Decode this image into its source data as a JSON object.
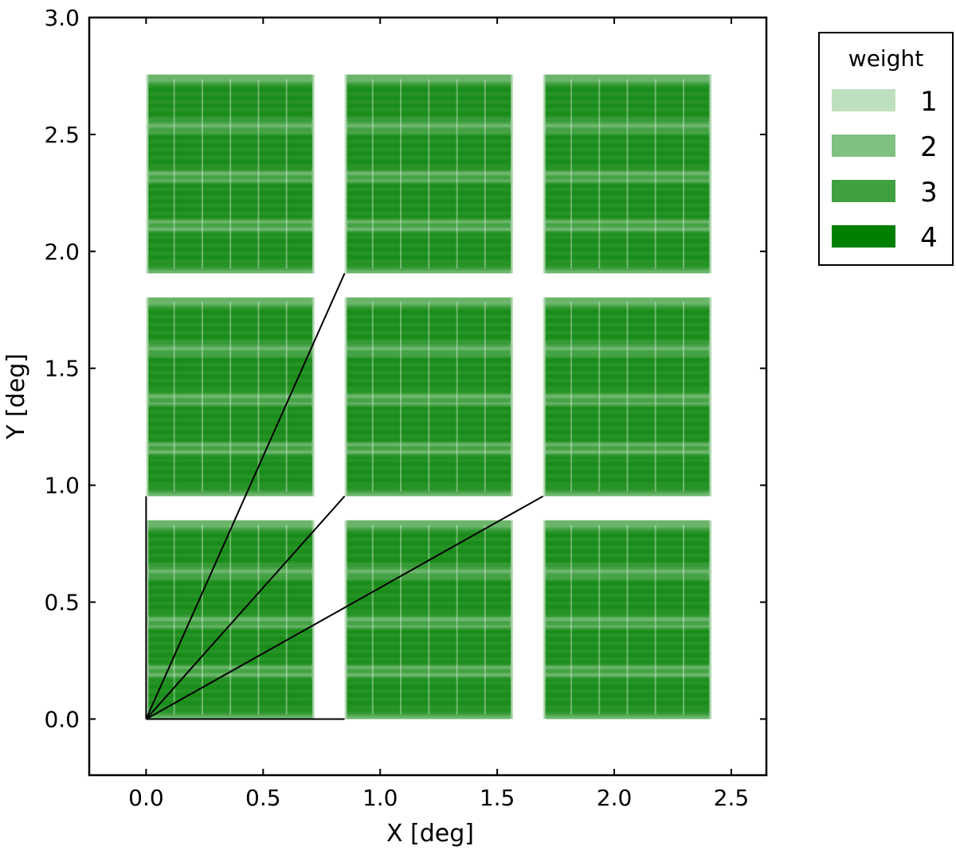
{
  "chart_data": {
    "type": "heatmap",
    "xlabel": "X  [deg]",
    "ylabel": "Y  [deg]",
    "xlim": [
      -0.243,
      2.65
    ],
    "ylim": [
      -0.24,
      3.0
    ],
    "xticks": [
      0.0,
      0.5,
      1.0,
      1.5,
      2.0,
      2.5
    ],
    "yticks": [
      0.0,
      0.5,
      1.0,
      1.5,
      2.0,
      2.5,
      3.0
    ],
    "xtick_labels": [
      "0.0",
      "0.5",
      "1.0",
      "1.5",
      "2.0",
      "2.5"
    ],
    "ytick_labels": [
      "0.0",
      "0.5",
      "1.0",
      "1.5",
      "2.0",
      "2.5",
      "3.0"
    ],
    "grid": false,
    "legend": {
      "title": "weight",
      "placement": "outside-top-right",
      "entries": [
        {
          "label": "1",
          "color": "#bfe0bf"
        },
        {
          "label": "2",
          "color": "#80c080"
        },
        {
          "label": "3",
          "color": "#40a040"
        },
        {
          "label": "4",
          "color": "#008000"
        }
      ]
    },
    "fill_color": "#008000",
    "fields": {
      "columns_x0": [
        0.0,
        0.848,
        1.696
      ],
      "rows_y0": [
        0.0,
        0.953,
        1.906
      ],
      "width": 0.72,
      "height": 0.85,
      "columns_per_field": 6,
      "row_blocks_per_field": 4
    },
    "lines": [
      {
        "x": [
          0.0,
          0.848
        ],
        "y": [
          0.0,
          1.906
        ]
      },
      {
        "x": [
          0.0,
          0.848
        ],
        "y": [
          0.0,
          0.953
        ]
      },
      {
        "x": [
          0.0,
          1.696
        ],
        "y": [
          0.0,
          0.953
        ]
      },
      {
        "x": [
          0.0,
          0.0
        ],
        "y": [
          0.0,
          0.953
        ]
      },
      {
        "x": [
          0.0,
          0.848
        ],
        "y": [
          0.0,
          0.0
        ]
      }
    ]
  }
}
